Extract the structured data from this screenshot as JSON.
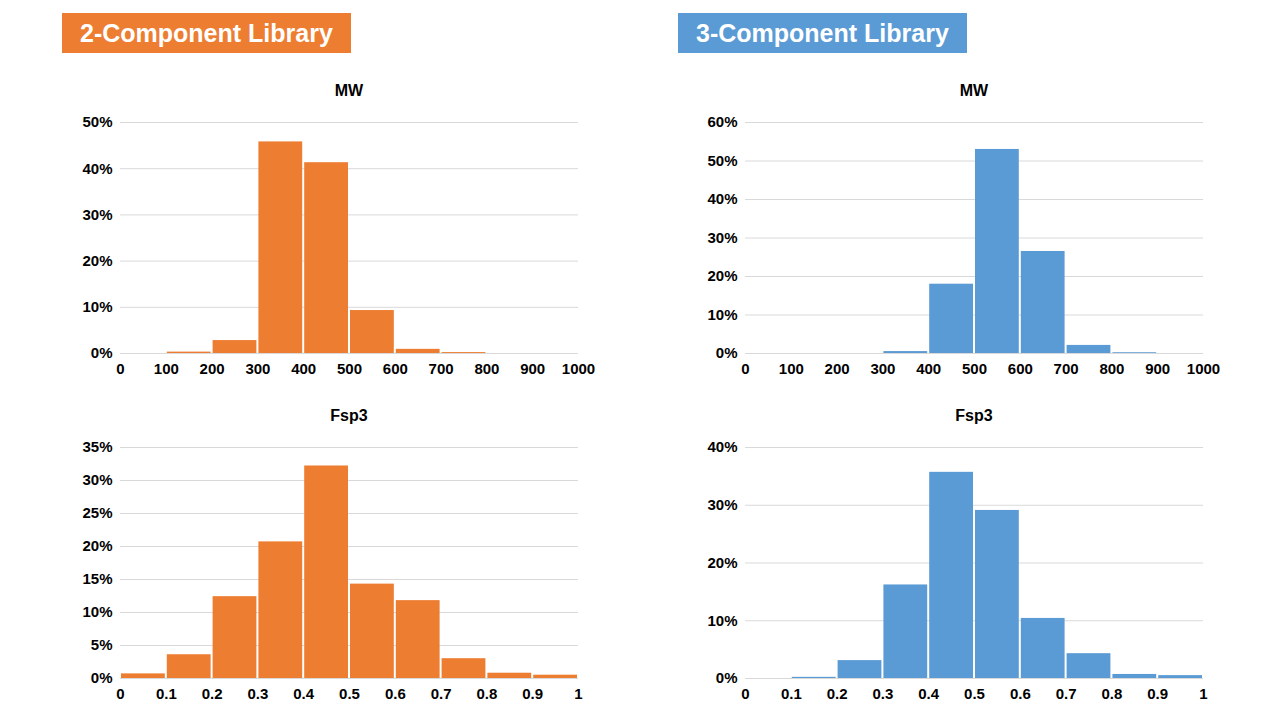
{
  "headers": [
    {
      "text": "2-Component Library",
      "color": "#ed7d31"
    },
    {
      "text": "3-Component Library",
      "color": "#5b9bd5"
    }
  ],
  "chart_data": [
    {
      "type": "histogram",
      "title": "MW",
      "color": "#ed7d31",
      "bins": [
        0,
        100,
        200,
        300,
        400,
        500,
        600,
        700,
        800,
        900,
        1000
      ],
      "values": [
        0,
        0.3,
        2.8,
        45.8,
        41.3,
        9.3,
        0.9,
        0.2,
        0,
        0
      ],
      "xlim": [
        0,
        1000
      ],
      "xticks": [
        0,
        100,
        200,
        300,
        400,
        500,
        600,
        700,
        800,
        900,
        1000
      ],
      "ylim": [
        0,
        50
      ],
      "yticks": [
        {
          "value": 0,
          "label": "0%"
        },
        {
          "value": 10,
          "label": "10%"
        },
        {
          "value": 20,
          "label": "20%"
        },
        {
          "value": 30,
          "label": "30%"
        },
        {
          "value": 40,
          "label": "40%"
        },
        {
          "value": 50,
          "label": "50%"
        }
      ],
      "grid": true
    },
    {
      "type": "histogram",
      "title": "Fsp3",
      "color": "#ed7d31",
      "bins": [
        0,
        0.1,
        0.2,
        0.3,
        0.4,
        0.5,
        0.6,
        0.7,
        0.8,
        0.9,
        1
      ],
      "values": [
        0.7,
        3.6,
        12.4,
        20.7,
        32.2,
        14.3,
        11.8,
        3.0,
        0.8,
        0.5
      ],
      "xlim": [
        0,
        1
      ],
      "xticks": [
        0,
        0.1,
        0.2,
        0.3,
        0.4,
        0.5,
        0.6,
        0.7,
        0.8,
        0.9,
        1
      ],
      "ylim": [
        0,
        35
      ],
      "yticks": [
        {
          "value": 0,
          "label": "0%"
        },
        {
          "value": 5,
          "label": "5%"
        },
        {
          "value": 10,
          "label": "10%"
        },
        {
          "value": 15,
          "label": "15%"
        },
        {
          "value": 20,
          "label": "20%"
        },
        {
          "value": 25,
          "label": "25%"
        },
        {
          "value": 30,
          "label": "30%"
        },
        {
          "value": 35,
          "label": "35%"
        }
      ],
      "grid": true
    },
    {
      "type": "histogram",
      "title": "MW",
      "color": "#5b9bd5",
      "bins": [
        0,
        100,
        200,
        300,
        400,
        500,
        600,
        700,
        800,
        900,
        1000
      ],
      "values": [
        0,
        0,
        0,
        0.5,
        18,
        53,
        26.5,
        2.1,
        0.2,
        0
      ],
      "xlim": [
        0,
        1000
      ],
      "xticks": [
        0,
        100,
        200,
        300,
        400,
        500,
        600,
        700,
        800,
        900,
        1000
      ],
      "ylim": [
        0,
        60
      ],
      "yticks": [
        {
          "value": 0,
          "label": "0%"
        },
        {
          "value": 10,
          "label": "10%"
        },
        {
          "value": 20,
          "label": "20%"
        },
        {
          "value": 30,
          "label": "30%"
        },
        {
          "value": 40,
          "label": "40%"
        },
        {
          "value": 50,
          "label": "50%"
        },
        {
          "value": 60,
          "label": "60%"
        }
      ],
      "grid": true
    },
    {
      "type": "histogram",
      "title": "Fsp3",
      "color": "#5b9bd5",
      "bins": [
        0,
        0.1,
        0.2,
        0.3,
        0.4,
        0.5,
        0.6,
        0.7,
        0.8,
        0.9,
        1
      ],
      "values": [
        0,
        0.2,
        3.1,
        16.2,
        35.7,
        29.1,
        10.4,
        4.3,
        0.7,
        0.5
      ],
      "xlim": [
        0,
        1
      ],
      "xticks": [
        0,
        0.1,
        0.2,
        0.3,
        0.4,
        0.5,
        0.6,
        0.7,
        0.8,
        0.9,
        1
      ],
      "ylim": [
        0,
        40
      ],
      "yticks": [
        {
          "value": 0,
          "label": "0%"
        },
        {
          "value": 10,
          "label": "10%"
        },
        {
          "value": 20,
          "label": "20%"
        },
        {
          "value": 30,
          "label": "30%"
        },
        {
          "value": 40,
          "label": "40%"
        }
      ],
      "grid": true
    }
  ]
}
